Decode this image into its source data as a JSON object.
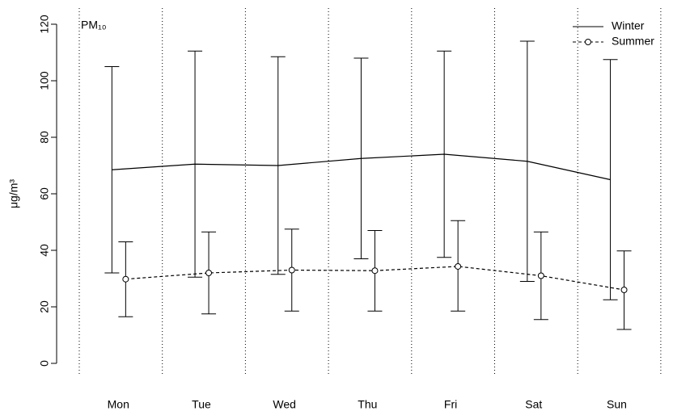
{
  "chart_data": {
    "type": "line",
    "annotation": "PM₁₀",
    "ylabel": "μg/m³",
    "categories": [
      "Mon",
      "Tue",
      "Wed",
      "Thu",
      "Fri",
      "Sat",
      "Sun"
    ],
    "series": [
      {
        "name": "Winter",
        "color": "#000000",
        "dash": false,
        "marker": false,
        "values": [
          68.5,
          70.5,
          70,
          72.5,
          74,
          71.5,
          65
        ],
        "upper": [
          105,
          110.5,
          108.5,
          108,
          110.5,
          114,
          107.5
        ],
        "lower": [
          32,
          30.5,
          31.5,
          37,
          37.5,
          29,
          22.5
        ]
      },
      {
        "name": "Summer",
        "color": "#000000",
        "dash": true,
        "marker": true,
        "values": [
          29.8,
          32,
          33,
          32.8,
          34.3,
          31,
          26
        ],
        "upper": [
          43,
          46.5,
          47.5,
          47,
          50.5,
          46.5,
          39.8
        ],
        "lower": [
          16.5,
          17.5,
          18.5,
          18.5,
          18.5,
          15.5,
          12
        ]
      }
    ],
    "ylim": [
      0,
      120
    ],
    "yticks": [
      0,
      20,
      40,
      60,
      80,
      100,
      120
    ],
    "legend": "top-right"
  }
}
